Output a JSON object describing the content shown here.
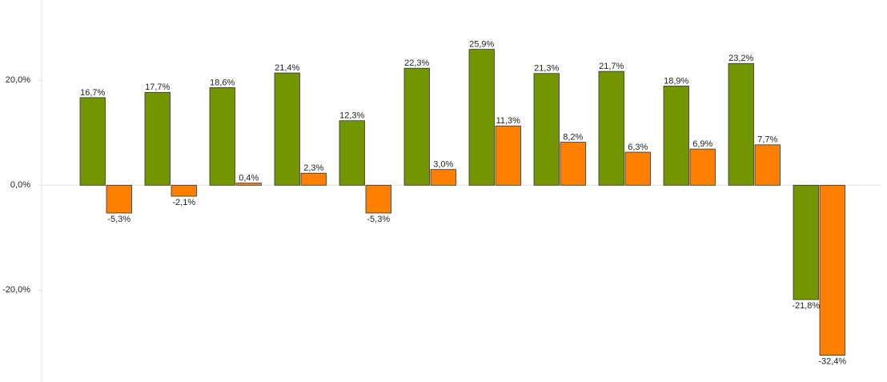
{
  "chart_data": {
    "type": "bar",
    "categories": [
      null,
      null,
      null,
      null,
      null,
      null,
      null,
      null,
      null,
      null,
      null,
      null
    ],
    "series": [
      {
        "color": "#739600",
        "values": [
          16.7,
          17.7,
          18.6,
          21.4,
          12.3,
          22.3,
          25.9,
          21.3,
          21.7,
          18.9,
          23.2,
          -21.8
        ],
        "value_labels": [
          "16,7%",
          "17,7%",
          "18,6%",
          "21,4%",
          "12,3%",
          "22,3%",
          "25,9%",
          "21,3%",
          "21,7%",
          "18,9%",
          "23,2%",
          "-21,8%"
        ]
      },
      {
        "color": "#ff7f00",
        "values": [
          -5.3,
          -2.1,
          0.4,
          2.3,
          -5.3,
          3.0,
          11.3,
          8.2,
          6.3,
          6.9,
          7.7,
          -32.4
        ],
        "value_labels": [
          "-5,3%",
          "-2,1%",
          "0,4%",
          "2,3%",
          "-5,3%",
          "3,0%",
          "11,3%",
          "8,2%",
          "6,3%",
          "6,9%",
          "7,7%",
          "-32,4%"
        ]
      }
    ],
    "ylim": [
      -37.5,
      35.3
    ],
    "yticks": [
      {
        "value": -20,
        "label": "-20,0%"
      },
      {
        "value": 0,
        "label": "0,0%"
      },
      {
        "value": 20,
        "label": "20,0%"
      }
    ]
  }
}
